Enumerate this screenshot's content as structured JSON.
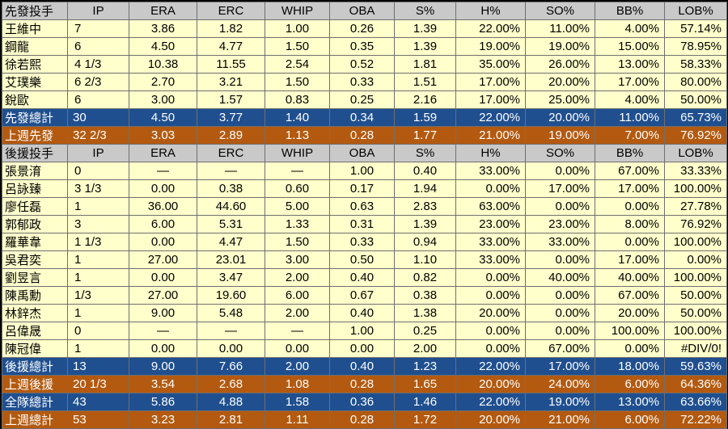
{
  "starters": {
    "header": [
      "先發投手",
      "IP",
      "ERA",
      "ERC",
      "WHIP",
      "OBA",
      "S%",
      "H%",
      "SO%",
      "BB%",
      "LOB%"
    ],
    "rows": [
      [
        "王維中",
        "7",
        "3.86",
        "1.82",
        "1.00",
        "0.26",
        "1.39",
        "22.00%",
        "11.00%",
        "4.00%",
        "57.14%"
      ],
      [
        "鋼龍",
        "6",
        "4.50",
        "4.77",
        "1.50",
        "0.35",
        "1.39",
        "19.00%",
        "19.00%",
        "15.00%",
        "78.95%"
      ],
      [
        "徐若熙",
        "4 1/3",
        "10.38",
        "11.55",
        "2.54",
        "0.52",
        "1.81",
        "35.00%",
        "26.00%",
        "13.00%",
        "58.33%"
      ],
      [
        "艾璞樂",
        "6 2/3",
        "2.70",
        "3.21",
        "1.50",
        "0.33",
        "1.51",
        "17.00%",
        "20.00%",
        "17.00%",
        "80.00%"
      ],
      [
        "銳歐",
        "6",
        "3.00",
        "1.57",
        "0.83",
        "0.25",
        "2.16",
        "17.00%",
        "25.00%",
        "4.00%",
        "50.00%"
      ]
    ],
    "total": [
      "先發總計",
      "30",
      "4.50",
      "3.77",
      "1.40",
      "0.34",
      "1.59",
      "22.00%",
      "20.00%",
      "11.00%",
      "65.73%"
    ],
    "last_week": [
      "上週先發",
      "32 2/3",
      "3.03",
      "2.89",
      "1.13",
      "0.28",
      "1.77",
      "21.00%",
      "19.00%",
      "7.00%",
      "76.92%"
    ]
  },
  "relievers": {
    "header": [
      "後援投手",
      "IP",
      "ERA",
      "ERC",
      "WHIP",
      "OBA",
      "S%",
      "H%",
      "SO%",
      "BB%",
      "LOB%"
    ],
    "rows": [
      [
        "張景淯",
        "0",
        "—",
        "—",
        "—",
        "1.00",
        "0.40",
        "33.00%",
        "0.00%",
        "67.00%",
        "33.33%"
      ],
      [
        "呂詠臻",
        "3 1/3",
        "0.00",
        "0.38",
        "0.60",
        "0.17",
        "1.94",
        "0.00%",
        "17.00%",
        "17.00%",
        "100.00%"
      ],
      [
        "廖任磊",
        "1",
        "36.00",
        "44.60",
        "5.00",
        "0.63",
        "2.83",
        "63.00%",
        "0.00%",
        "0.00%",
        "27.78%"
      ],
      [
        "郭郁政",
        "3",
        "6.00",
        "5.31",
        "1.33",
        "0.31",
        "1.39",
        "23.00%",
        "23.00%",
        "8.00%",
        "76.92%"
      ],
      [
        "羅華韋",
        "1 1/3",
        "0.00",
        "4.47",
        "1.50",
        "0.33",
        "0.94",
        "33.00%",
        "33.00%",
        "0.00%",
        "100.00%"
      ],
      [
        "吳君奕",
        "1",
        "27.00",
        "23.01",
        "3.00",
        "0.50",
        "1.10",
        "33.00%",
        "0.00%",
        "17.00%",
        "0.00%"
      ],
      [
        "劉昱言",
        "1",
        "0.00",
        "3.47",
        "2.00",
        "0.40",
        "0.82",
        "0.00%",
        "40.00%",
        "40.00%",
        "100.00%"
      ],
      [
        "陳禹勳",
        "1/3",
        "27.00",
        "19.60",
        "6.00",
        "0.67",
        "0.38",
        "0.00%",
        "0.00%",
        "67.00%",
        "50.00%"
      ],
      [
        "林鋅杰",
        "1",
        "9.00",
        "5.48",
        "2.00",
        "0.40",
        "1.38",
        "20.00%",
        "0.00%",
        "20.00%",
        "50.00%"
      ],
      [
        "呂偉晟",
        "0",
        "—",
        "—",
        "—",
        "1.00",
        "0.25",
        "0.00%",
        "0.00%",
        "100.00%",
        "100.00%"
      ],
      [
        "陳冠偉",
        "1",
        "0.00",
        "0.00",
        "0.00",
        "0.00",
        "2.00",
        "0.00%",
        "67.00%",
        "0.00%",
        "#DIV/0!"
      ]
    ],
    "total": [
      "後援總計",
      "13",
      "9.00",
      "7.66",
      "2.00",
      "0.40",
      "1.23",
      "22.00%",
      "17.00%",
      "18.00%",
      "59.63%"
    ],
    "last_week": [
      "上週後援",
      "20 1/3",
      "3.54",
      "2.68",
      "1.08",
      "0.28",
      "1.65",
      "20.00%",
      "24.00%",
      "6.00%",
      "64.36%"
    ]
  },
  "team_total": [
    "全隊總計",
    "43",
    "5.86",
    "4.88",
    "1.58",
    "0.36",
    "1.46",
    "22.00%",
    "19.00%",
    "13.00%",
    "63.66%"
  ],
  "last_week_total": [
    "上週總計",
    "53",
    "3.23",
    "2.81",
    "1.11",
    "0.28",
    "1.72",
    "20.00%",
    "21.00%",
    "6.00%",
    "72.22%"
  ],
  "colors": {
    "header_bg": "#c9c9c9",
    "row_bg": "#ffffcc",
    "total_blue": "#1f4f8f",
    "total_orange": "#b35a10"
  }
}
